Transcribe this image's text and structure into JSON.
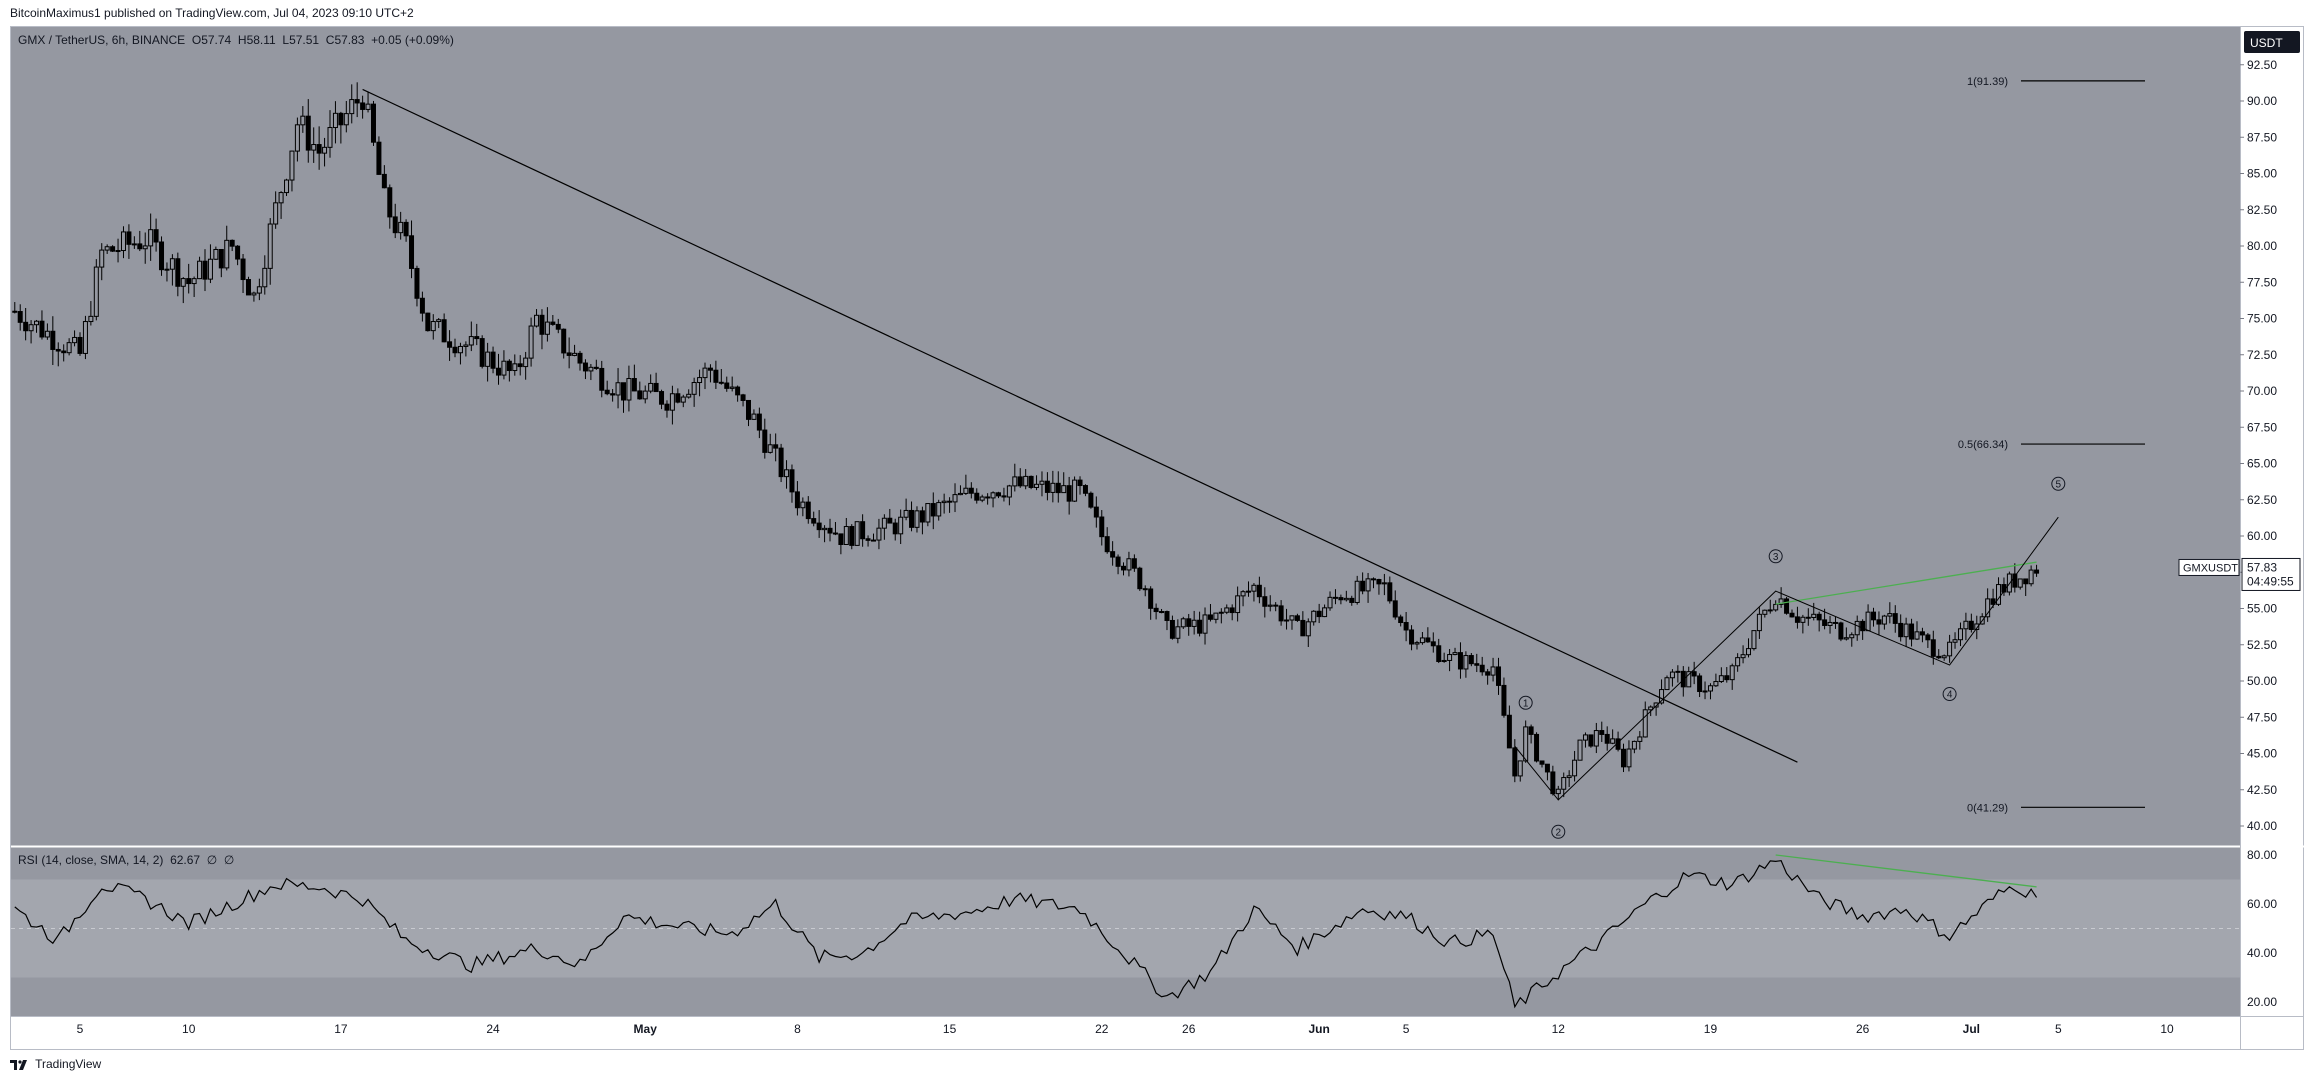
{
  "publish_line": "BitcoinMaximus1 published on TradingView.com, Jul 04, 2023 09:10 UTC+2",
  "footer_brand": "TradingView",
  "ticker": {
    "symbol": "GMX / TetherUS, 6h, BINANCE",
    "o_label": "O",
    "o": "57.74",
    "h_label": "H",
    "h": "58.11",
    "l_label": "L",
    "l": "57.51",
    "c_label": "C",
    "c": "57.83",
    "change": "+0.05 (+0.09%)"
  },
  "currency_badge": "USDT",
  "last_price": {
    "label": "GMXUSDT",
    "price": "57.83",
    "countdown": "04:49:55"
  },
  "rsi_info": {
    "label": "RSI (14, close, SMA, 14, 2)",
    "value": "62.67",
    "extra1": "∅",
    "extra2": "∅"
  },
  "colors": {
    "pane_bg": "#9598a1",
    "candle": "#000000",
    "green_line": "#4caf50",
    "rsi_band": "#a3a6ae"
  },
  "chart_data": [
    {
      "type": "candlestick",
      "title": "GMX / TetherUS, 6h, BINANCE",
      "x_tick_labels": [
        "5",
        "10",
        "17",
        "24",
        "May",
        "8",
        "15",
        "22",
        "26",
        "Jun",
        "5",
        "12",
        "19",
        "26",
        "Jul",
        "5",
        "10"
      ],
      "y_tick_labels": [
        "92.50",
        "90.00",
        "87.50",
        "85.00",
        "82.50",
        "80.00",
        "77.50",
        "75.00",
        "72.50",
        "70.00",
        "67.50",
        "65.00",
        "62.50",
        "60.00",
        "57.50",
        "55.00",
        "52.50",
        "50.00",
        "47.50",
        "45.00",
        "42.50",
        "40.00"
      ],
      "ylim": [
        38.5,
        93.5
      ],
      "price_path": [
        [
          "Apr 2",
          75.5
        ],
        [
          "Apr 5",
          72.5
        ],
        [
          "Apr 6",
          79.5
        ],
        [
          "Apr 8",
          80.5
        ],
        [
          "Apr 10",
          77.5
        ],
        [
          "Apr 12",
          80.0
        ],
        [
          "Apr 13",
          76.5
        ],
        [
          "Apr 14",
          82.5
        ],
        [
          "Apr 15",
          88.5
        ],
        [
          "Apr 16",
          86.5
        ],
        [
          "Apr 17",
          88.5
        ],
        [
          "Apr 18",
          90.5
        ],
        [
          "Apr 19",
          83.0
        ],
        [
          "Apr 20",
          80.0
        ],
        [
          "Apr 21",
          74.5
        ],
        [
          "Apr 23",
          73.0
        ],
        [
          "Apr 25",
          71.0
        ],
        [
          "Apr 26",
          75.0
        ],
        [
          "Apr 28",
          72.0
        ],
        [
          "Apr 30",
          70.0
        ],
        [
          "May 2",
          69.5
        ],
        [
          "May 4",
          71.5
        ],
        [
          "May 6",
          68.0
        ],
        [
          "May 8",
          62.5
        ],
        [
          "May 10",
          60.0
        ],
        [
          "May 12",
          60.5
        ],
        [
          "May 14",
          61.5
        ],
        [
          "May 16",
          63.0
        ],
        [
          "May 18",
          63.5
        ],
        [
          "May 21",
          63.0
        ],
        [
          "May 22",
          60.0
        ],
        [
          "May 24",
          56.5
        ],
        [
          "May 25",
          53.5
        ],
        [
          "May 27",
          54.0
        ],
        [
          "May 29",
          56.5
        ],
        [
          "May 31",
          53.5
        ],
        [
          "Jun 2",
          56.0
        ],
        [
          "Jun 4",
          56.5
        ],
        [
          "Jun 5",
          53.5
        ],
        [
          "Jun 7",
          51.5
        ],
        [
          "Jun 9",
          51.0
        ],
        [
          "Jun 10",
          43.5
        ],
        [
          "Jun 10 12h",
          46.5
        ],
        [
          "Jun 11",
          45.0
        ],
        [
          "Jun 12",
          42.0
        ],
        [
          "Jun 13",
          45.5
        ],
        [
          "Jun 14",
          46.5
        ],
        [
          "Jun 15",
          44.5
        ],
        [
          "Jun 16",
          47.5
        ],
        [
          "Jun 17",
          50.5
        ],
        [
          "Jun 19",
          49.5
        ],
        [
          "Jun 20",
          50.5
        ],
        [
          "Jun 21",
          53.5
        ],
        [
          "Jun 22",
          56.0
        ],
        [
          "Jun 23",
          54.5
        ],
        [
          "Jun 25",
          53.5
        ],
        [
          "Jun 27",
          54.5
        ],
        [
          "Jun 29",
          52.5
        ],
        [
          "Jun 30",
          52.0
        ],
        [
          "Jul 1",
          54.0
        ],
        [
          "Jul 2",
          56.0
        ],
        [
          "Jul 3",
          57.0
        ],
        [
          "Jul 4",
          57.83
        ]
      ],
      "wave_labels": [
        "1",
        "2",
        "3",
        "4",
        "5"
      ],
      "fib_levels": [
        {
          "label": "1(91.39)",
          "value": 91.39
        },
        {
          "label": "0.5(66.34)",
          "value": 66.34
        },
        {
          "label": "0(41.29)",
          "value": 41.29
        }
      ],
      "annotations": [
        "descending resistance line",
        "ascending green line",
        "wave path"
      ]
    },
    {
      "type": "line",
      "title": "RSI (14, close, SMA, 14, 2)",
      "y_tick_labels": [
        "80.00",
        "60.00",
        "40.00",
        "20.00"
      ],
      "ylim": [
        15,
        84
      ],
      "band": [
        30,
        70
      ],
      "midline": 50,
      "series": [
        {
          "values": [
            [
              "Apr 2",
              58
            ],
            [
              "Apr 4",
              45
            ],
            [
              "Apr 6",
              68
            ],
            [
              "Apr 8",
              62
            ],
            [
              "Apr 10",
              52
            ],
            [
              "Apr 12",
              60
            ],
            [
              "Apr 14",
              68
            ],
            [
              "Apr 16",
              67
            ],
            [
              "Apr 18",
              62
            ],
            [
              "Apr 20",
              45
            ],
            [
              "Apr 23",
              35
            ],
            [
              "Apr 26",
              42
            ],
            [
              "Apr 28",
              35
            ],
            [
              "Apr 30",
              55
            ],
            [
              "May 3",
              50
            ],
            [
              "May 5",
              48
            ],
            [
              "May 7",
              60
            ],
            [
              "May 9",
              38
            ],
            [
              "May 11",
              40
            ],
            [
              "May 13",
              53
            ],
            [
              "May 16",
              57
            ],
            [
              "May 18",
              62
            ],
            [
              "May 21",
              58
            ],
            [
              "May 23",
              40
            ],
            [
              "May 25",
              22
            ],
            [
              "May 27",
              32
            ],
            [
              "May 29",
              58
            ],
            [
              "May 31",
              42
            ],
            [
              "Jun 3",
              58
            ],
            [
              "Jun 5",
              55
            ],
            [
              "Jun 7",
              44
            ],
            [
              "Jun 9",
              48
            ],
            [
              "Jun 10",
              18
            ],
            [
              "Jun 12",
              32
            ],
            [
              "Jun 14",
              45
            ],
            [
              "Jun 16",
              60
            ],
            [
              "Jun 18",
              72
            ],
            [
              "Jun 20",
              68
            ],
            [
              "Jun 22",
              78
            ],
            [
              "Jun 24",
              62
            ],
            [
              "Jun 26",
              55
            ],
            [
              "Jun 28",
              58
            ],
            [
              "Jun 30",
              47
            ],
            [
              "Jul 2",
              62
            ],
            [
              "Jul 3",
              68
            ],
            [
              "Jul 4",
              62.67
            ]
          ]
        }
      ]
    }
  ]
}
